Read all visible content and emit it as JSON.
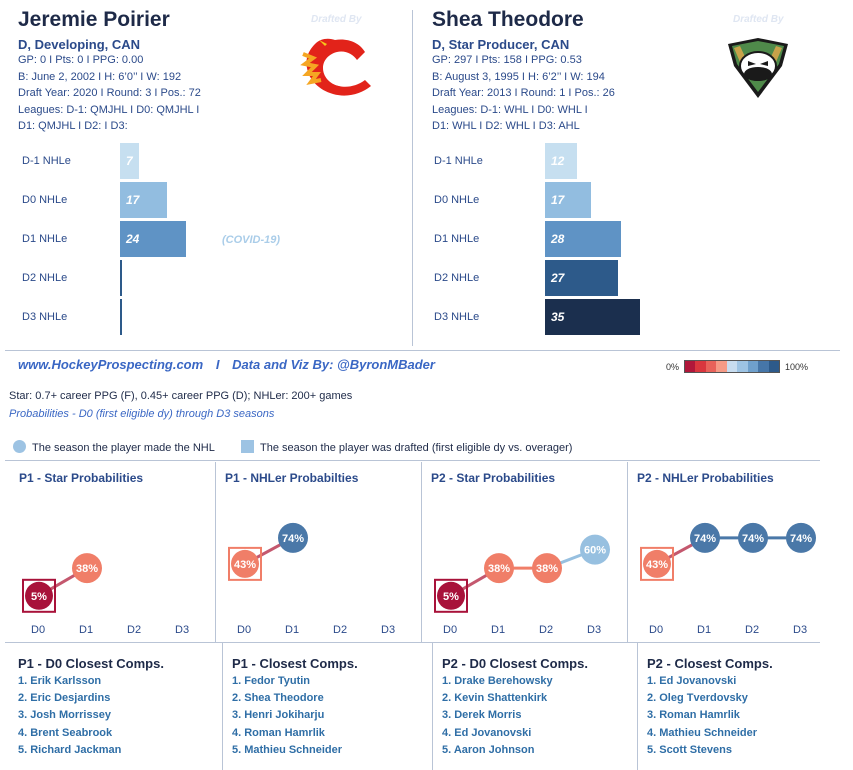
{
  "player1": {
    "name": "Jeremie Poirier",
    "subtitle": "D, Developing, CAN",
    "drafted_by": "Drafted By",
    "info": [
      "GP: 0 I Pts: 0 I PPG: 0.00",
      "B: June 2, 2002 I H: 6’0’’ I W: 192",
      "Draft Year: 2020 I Round: 3 I Pos.: 72",
      "Leagues: D-1: QMJHL I D0: QMJHL I",
      "D1: QMJHL I D2:  I D3:"
    ],
    "team_logo": "calgary-flames-logo",
    "nhle": [
      {
        "label": "D-1 NHLe",
        "value": 7,
        "color": "#c6dff0"
      },
      {
        "label": "D0 NHLe",
        "value": 17,
        "color": "#92bde0"
      },
      {
        "label": "D1 NHLe",
        "value": 24,
        "color": "#5f93c5"
      },
      {
        "label": "D2 NHLe",
        "value": 0,
        "color": "#2d5a8a"
      },
      {
        "label": "D3 NHLe",
        "value": 0,
        "color": "#1b2f4e"
      }
    ],
    "note": "(COVID-19)"
  },
  "player2": {
    "name": "Shea Theodore",
    "subtitle": "D, Star Producer, CAN",
    "drafted_by": "Drafted By",
    "info": [
      "GP: 297 I Pts: 158 I PPG: 0.53",
      "B: August 3, 1995 I H: 6’2’’ I W: 194",
      "Draft Year: 2013 I Round: 1 I Pos.: 26",
      "Leagues: D-1: WHL I D0: WHL I",
      "D1: WHL I D2: WHL I D3: AHL"
    ],
    "team_logo": "anaheim-ducks-logo",
    "nhle": [
      {
        "label": "D-1 NHLe",
        "value": 12,
        "color": "#c6dff0"
      },
      {
        "label": "D0 NHLe",
        "value": 17,
        "color": "#92bde0"
      },
      {
        "label": "D1 NHLe",
        "value": 28,
        "color": "#5f93c5"
      },
      {
        "label": "D2 NHLe",
        "value": 27,
        "color": "#2d5a8a"
      },
      {
        "label": "D3 NHLe",
        "value": 35,
        "color": "#1b2f4e"
      }
    ]
  },
  "footer": {
    "site": "www.HockeyProspecting.com",
    "separator": "I",
    "credit": "Data and Viz By: @ByronMBader",
    "legend_min": "0%",
    "legend_max": "100%",
    "legend_colors": [
      "#b0173a",
      "#d9363e",
      "#e8625a",
      "#f59a86",
      "#c7dcef",
      "#9dc3e3",
      "#6fa0cc",
      "#4676a8",
      "#2d5a8a"
    ]
  },
  "definitions": {
    "line1": "Star: 0.7+ career PPG (F), 0.45+ career PPG (D); NHLer: 200+ games",
    "line2": "Probabilities - D0 (first eligible dy) through D3 seasons"
  },
  "legend": {
    "circle_text": "The season the player made the NHL",
    "square_text": "The season the player was drafted (first eligible dy vs. overager)"
  },
  "panels": [
    {
      "title": "P1 - Star Probabilities",
      "x_labels": [
        "D0",
        "D1",
        "D2",
        "D3"
      ],
      "points": [
        {
          "x": "D0",
          "value": 5,
          "label": "5%",
          "color": "#a8123a",
          "shape": "square"
        },
        {
          "x": "D1",
          "value": 38,
          "label": "38%",
          "color": "#f07e68",
          "shape": "circle"
        }
      ]
    },
    {
      "title": "P1 - NHLer Probabilties",
      "x_labels": [
        "D0",
        "D1",
        "D2",
        "D3"
      ],
      "points": [
        {
          "x": "D0",
          "value": 43,
          "label": "43%",
          "color": "#f07e68",
          "shape": "square"
        },
        {
          "x": "D1",
          "value": 74,
          "label": "74%",
          "color": "#4a78a8",
          "shape": "circle"
        }
      ]
    },
    {
      "title": "P2 - Star Probabilities",
      "x_labels": [
        "D0",
        "D1",
        "D2",
        "D3"
      ],
      "points": [
        {
          "x": "D0",
          "value": 5,
          "label": "5%",
          "color": "#a8123a",
          "shape": "square"
        },
        {
          "x": "D1",
          "value": 38,
          "label": "38%",
          "color": "#f07e68",
          "shape": "circle"
        },
        {
          "x": "D2",
          "value": 38,
          "label": "38%",
          "color": "#f07e68",
          "shape": "circle"
        },
        {
          "x": "D3",
          "value": 60,
          "label": "60%",
          "color": "#97c0e0",
          "shape": "circle"
        }
      ]
    },
    {
      "title": "P2 - NHLer Probabilities",
      "x_labels": [
        "D0",
        "D1",
        "D2",
        "D3"
      ],
      "points": [
        {
          "x": "D0",
          "value": 43,
          "label": "43%",
          "color": "#f07e68",
          "shape": "square"
        },
        {
          "x": "D1",
          "value": 74,
          "label": "74%",
          "color": "#4a78a8",
          "shape": "circle"
        },
        {
          "x": "D2",
          "value": 74,
          "label": "74%",
          "color": "#4a78a8",
          "shape": "circle"
        },
        {
          "x": "D3",
          "value": 74,
          "label": "74%",
          "color": "#4a78a8",
          "shape": "circle"
        }
      ]
    }
  ],
  "comps": [
    {
      "title": "P1 - D0 Closest Comps.",
      "items": [
        "1. Erik Karlsson",
        "2. Eric Desjardins",
        "3. Josh Morrissey",
        "4. Brent Seabrook",
        "5. Richard Jackman"
      ]
    },
    {
      "title": "P1 - Closest Comps.",
      "items": [
        "1. Fedor Tyutin",
        "2. Shea Theodore",
        "3. Henri Jokiharju",
        "4. Roman Hamrlik",
        "5. Mathieu Schneider"
      ]
    },
    {
      "title": "P2 - D0 Closest Comps.",
      "items": [
        "1. Drake Berehowsky",
        "2. Kevin Shattenkirk",
        "3. Derek Morris",
        "4. Ed Jovanovski",
        "5. Aaron Johnson"
      ]
    },
    {
      "title": "P2 - Closest Comps.",
      "items": [
        "1. Ed Jovanovski",
        "2. Oleg Tverdovsky",
        "3. Roman Hamrlik",
        "4. Mathieu Schneider",
        "5. Scott Stevens"
      ]
    }
  ]
}
